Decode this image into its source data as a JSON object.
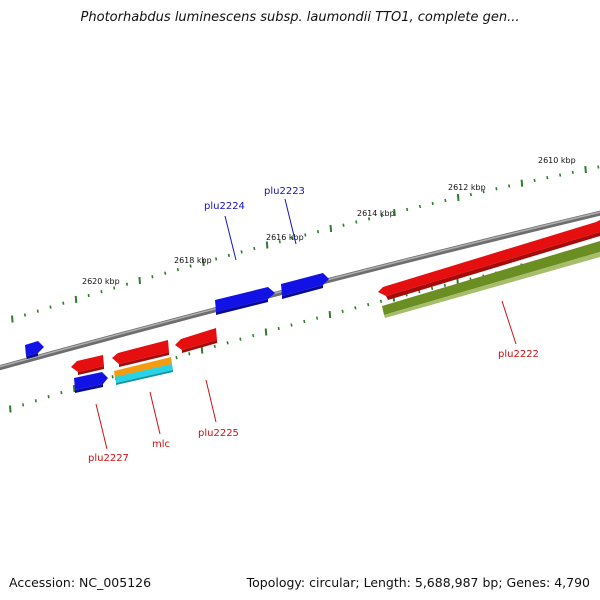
{
  "title": "Photorhabdus luminescens subsp. laumondii TTO1, complete gen...",
  "footer": {
    "accession": "Accession: NC_005126",
    "summary": "Topology: circular; Length: 5,688,987 bp; Genes: 4,790"
  },
  "colors": {
    "backbone": "#808080",
    "tick": "#2e7d2e",
    "forward_gene": "#1212e6",
    "reverse_gene": "#e60f0f",
    "olive_feature": "#6b8e23",
    "orange_feature": "#f39c12",
    "cyan_feature": "#29d3e6",
    "forward_label": "#1414c8",
    "reverse_label": "#cc1111"
  },
  "tick_labels": [
    "2610 kbp",
    "2612 kbp",
    "2614 kbp",
    "2616 kbp",
    "2618 kbp",
    "2620 kbp"
  ],
  "gene_labels": {
    "plu2222": "plu2222",
    "plu2223": "plu2223",
    "plu2224": "plu2224",
    "plu2225": "plu2225",
    "plu2227": "plu2227",
    "mlc": "mlc"
  }
}
